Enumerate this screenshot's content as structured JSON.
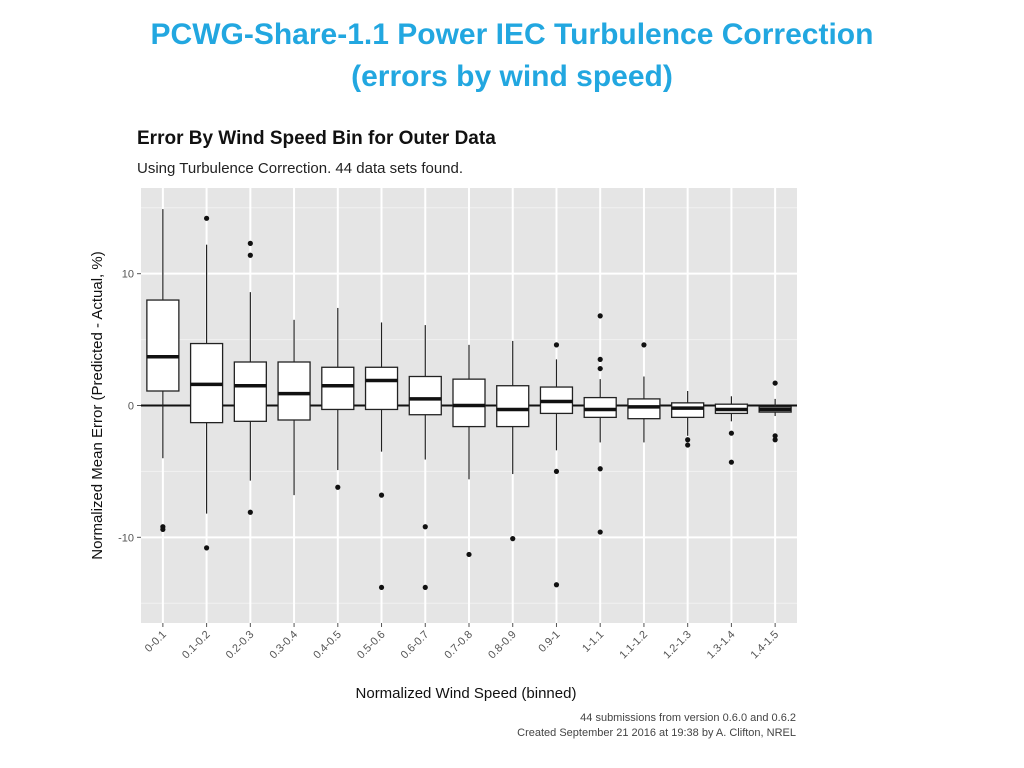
{
  "slide": {
    "title_line1": "PCWG-Share-1.1 Power IEC Turbulence Correction",
    "title_line2": "(errors by wind speed)"
  },
  "chart_data": {
    "type": "boxplot",
    "title": "Error By Wind Speed Bin for Outer Data",
    "subtitle": "Using Turbulence Correction. 44 data sets found.",
    "xlabel": "Normalized Wind Speed (binned)",
    "ylabel": "Normalized Mean Error (Predicted - Actual, %)",
    "ylim": [
      -16.5,
      16.5
    ],
    "yticks": [
      -10,
      0,
      10
    ],
    "grid": true,
    "hline": 0,
    "categories": [
      "0-0.1",
      "0.1-0.2",
      "0.2-0.3",
      "0.3-0.4",
      "0.4-0.5",
      "0.5-0.6",
      "0.6-0.7",
      "0.7-0.8",
      "0.8-0.9",
      "0.9-1",
      "1-1.1",
      "1.1-1.2",
      "1.2-1.3",
      "1.3-1.4",
      "1.4-1.5"
    ],
    "boxes": [
      {
        "low": -4.0,
        "q1": 1.1,
        "median": 3.7,
        "q3": 8.0,
        "high": 14.9,
        "outliers": [
          -9.2,
          -9.4
        ]
      },
      {
        "low": -8.2,
        "q1": -1.3,
        "median": 1.6,
        "q3": 4.7,
        "high": 12.2,
        "outliers": [
          14.2,
          -10.8
        ]
      },
      {
        "low": -5.7,
        "q1": -1.2,
        "median": 1.5,
        "q3": 3.3,
        "high": 8.6,
        "outliers": [
          12.3,
          11.4,
          -8.1
        ]
      },
      {
        "low": -6.8,
        "q1": -1.1,
        "median": 0.9,
        "q3": 3.3,
        "high": 6.5,
        "outliers": []
      },
      {
        "low": -4.9,
        "q1": -0.3,
        "median": 1.5,
        "q3": 2.9,
        "high": 7.4,
        "outliers": [
          -6.2
        ]
      },
      {
        "low": -3.5,
        "q1": -0.3,
        "median": 1.9,
        "q3": 2.9,
        "high": 6.3,
        "outliers": [
          -6.8,
          -13.8
        ]
      },
      {
        "low": -4.1,
        "q1": -0.7,
        "median": 0.5,
        "q3": 2.2,
        "high": 6.1,
        "outliers": [
          -9.2,
          -13.8
        ]
      },
      {
        "low": -5.6,
        "q1": -1.6,
        "median": 0.0,
        "q3": 2.0,
        "high": 4.6,
        "outliers": [
          -11.3
        ]
      },
      {
        "low": -5.2,
        "q1": -1.6,
        "median": -0.3,
        "q3": 1.5,
        "high": 4.9,
        "outliers": [
          -10.1
        ]
      },
      {
        "low": -3.4,
        "q1": -0.6,
        "median": 0.3,
        "q3": 1.4,
        "high": 3.5,
        "outliers": [
          4.6,
          -5.0,
          -13.6
        ]
      },
      {
        "low": -2.8,
        "q1": -0.9,
        "median": -0.3,
        "q3": 0.6,
        "high": 2.0,
        "outliers": [
          6.8,
          3.5,
          2.8,
          -4.8,
          -9.6
        ]
      },
      {
        "low": -2.8,
        "q1": -1.0,
        "median": -0.1,
        "q3": 0.5,
        "high": 2.2,
        "outliers": [
          4.6
        ]
      },
      {
        "low": -2.3,
        "q1": -0.9,
        "median": -0.2,
        "q3": 0.2,
        "high": 1.1,
        "outliers": [
          -2.6,
          -3.0
        ]
      },
      {
        "low": -1.2,
        "q1": -0.6,
        "median": -0.3,
        "q3": 0.1,
        "high": 0.7,
        "outliers": [
          -2.1,
          -4.3
        ]
      },
      {
        "low": -0.8,
        "q1": -0.5,
        "median": -0.3,
        "q3": -0.1,
        "high": 0.5,
        "outliers": [
          1.7,
          -2.3,
          -2.6
        ]
      }
    ]
  },
  "footnote": {
    "line1": "44 submissions from version 0.6.0 and 0.6.2",
    "line2": "Created September 21 2016 at 19:38 by A. Clifton, NREL"
  },
  "colors": {
    "title": "#22a7e0",
    "panel": "#e5e5e5",
    "grid": "#ffffff",
    "box_fill": "#ffffff",
    "stroke": "#222222"
  }
}
